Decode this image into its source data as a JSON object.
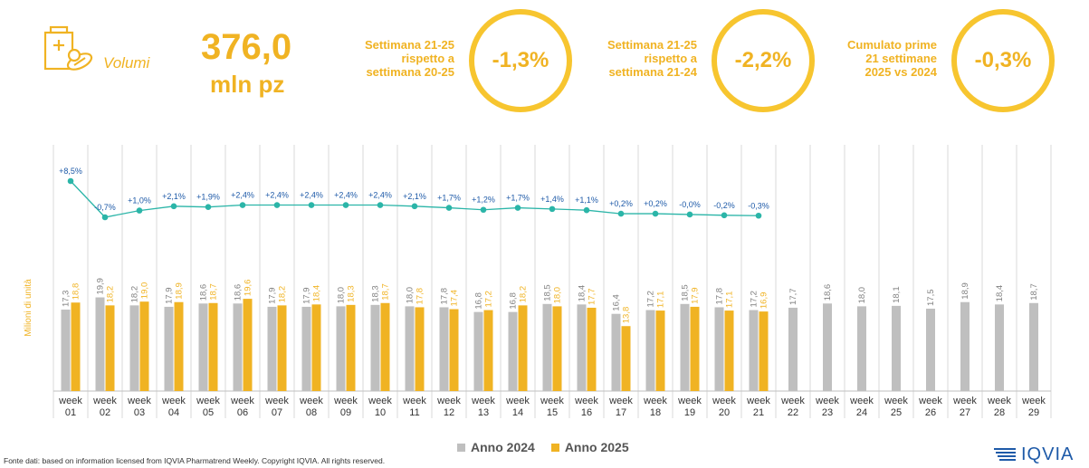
{
  "header": {
    "icon_name": "medicine-box-pills-icon",
    "label": "Volumi",
    "total_value": "376,0",
    "total_unit": "mln pz",
    "kpis": [
      {
        "lines": [
          "Settimana 21-25",
          "rispetto a",
          "settimana 20-25"
        ],
        "value": "-1,3%"
      },
      {
        "lines": [
          "Settimana 21-25",
          "rispetto a",
          "settimana 21-24"
        ],
        "value": "-2,2%"
      },
      {
        "lines": [
          "Cumulato prime",
          "21 settimane",
          "2025 vs 2024"
        ],
        "value": "-0,3%"
      }
    ]
  },
  "chart_data": {
    "type": "bar",
    "ylabel": "Milioni di unità",
    "categories": [
      "week 01",
      "week 02",
      "week 03",
      "week 04",
      "week 05",
      "week 06",
      "week 07",
      "week 08",
      "week 09",
      "week 10",
      "week 11",
      "week 12",
      "week 13",
      "week 14",
      "week 15",
      "week 16",
      "week 17",
      "week 18",
      "week 19",
      "week 20",
      "week 21",
      "week 22",
      "week 23",
      "week 24",
      "week 25",
      "week 26",
      "week 27",
      "week 28",
      "week 29"
    ],
    "series": [
      {
        "name": "Anno 2024",
        "color": "#bfbfbf",
        "values": [
          17.3,
          19.9,
          18.2,
          17.9,
          18.6,
          18.6,
          17.9,
          17.9,
          18.0,
          18.3,
          18.0,
          17.8,
          16.8,
          16.8,
          18.5,
          18.4,
          16.4,
          17.2,
          18.5,
          17.8,
          17.2,
          17.7,
          18.6,
          18.0,
          18.1,
          17.5,
          18.9,
          18.4,
          18.7
        ]
      },
      {
        "name": "Anno 2025",
        "color": "#f0b323",
        "values": [
          18.8,
          18.2,
          19.0,
          18.9,
          18.7,
          19.6,
          18.2,
          18.4,
          18.3,
          18.7,
          17.8,
          17.4,
          17.2,
          18.2,
          18.0,
          17.7,
          13.8,
          17.1,
          17.9,
          17.1,
          16.9,
          null,
          null,
          null,
          null,
          null,
          null,
          null,
          null
        ]
      }
    ],
    "value_labels": {
      "2024": [
        "17,3",
        "19,9",
        "18,2",
        "17,9",
        "18,6",
        "18,6",
        "17,9",
        "17,9",
        "18,0",
        "18,3",
        "18,0",
        "17,8",
        "16,8",
        "16,8",
        "18,5",
        "18,4",
        "16,4",
        "17,2",
        "18,5",
        "17,8",
        "17,2",
        "17,7",
        "18,6",
        "18,0",
        "18,1",
        "17,5",
        "18,9",
        "18,4",
        "18,7"
      ],
      "2025": [
        "18,8",
        "18,2",
        "19,0",
        "18,9",
        "18,7",
        "19,6",
        "18,2",
        "18,4",
        "18,3",
        "18,7",
        "17,8",
        "17,4",
        "17,2",
        "18,2",
        "18,0",
        "17,7",
        "13,8",
        "17,1",
        "17,9",
        "17,1",
        "16,9"
      ]
    },
    "growth_line": {
      "color": "#2bb5a8",
      "values": [
        8.5,
        -0.7,
        1.0,
        2.1,
        1.9,
        2.4,
        2.4,
        2.4,
        2.4,
        2.4,
        2.1,
        1.7,
        1.2,
        1.7,
        1.4,
        1.1,
        0.2,
        0.2,
        0.0,
        -0.2,
        -0.3
      ],
      "labels": [
        "+8,5%",
        "-0,7%",
        "+1,0%",
        "+2,1%",
        "+1,9%",
        "+2,4%",
        "+2,4%",
        "+2,4%",
        "+2,4%",
        "+2,4%",
        "+2,1%",
        "+1,7%",
        "+1,2%",
        "+1,7%",
        "+1,4%",
        "+1,1%",
        "+0,2%",
        "+0,2%",
        "-0,0%",
        "-0,2%",
        "-0,3%"
      ]
    },
    "legend": [
      "Anno 2024",
      "Anno 2025"
    ],
    "legend_position": "bottom"
  },
  "footer": {
    "source": "Fonte dati: based on information licensed from IQVIA Pharmatrend Weekly. Copyright IQVIA. All rights reserved.",
    "logo_text": "IQVIA"
  }
}
